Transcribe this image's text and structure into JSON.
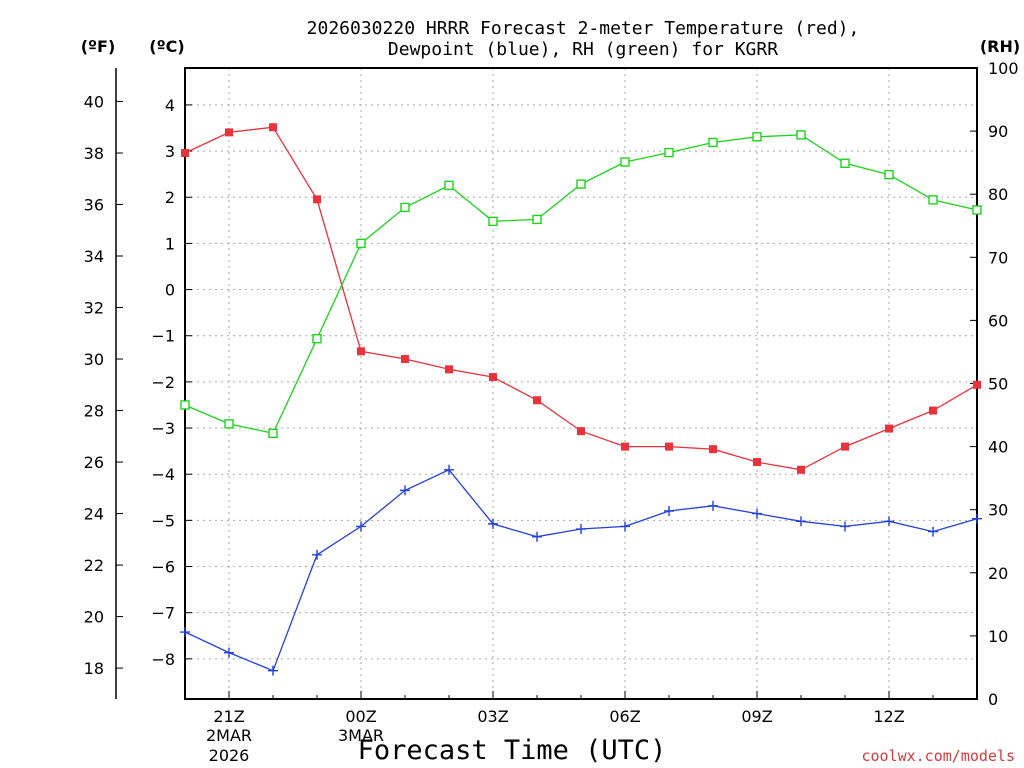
{
  "chart_data": {
    "type": "line",
    "title_line1": "2026030220 HRRR Forecast 2-meter Temperature (red),",
    "title_line2": "Dewpoint (blue), RH (green) for KGRR",
    "xlabel": "Forecast Time (UTC)",
    "credit": "coolwx.com/models",
    "units": {
      "fahrenheit": "(ºF)",
      "celsius": "(ºC)",
      "rh": "(RH)"
    },
    "hours": [
      0,
      1,
      2,
      3,
      4,
      5,
      6,
      7,
      8,
      9,
      10,
      11,
      12,
      13,
      14,
      15,
      16,
      17,
      18
    ],
    "x_ticks": [
      {
        "hour": 1,
        "label": "21Z",
        "sub1": "2MAR",
        "sub2": "2026"
      },
      {
        "hour": 4,
        "label": "00Z",
        "sub1": "3MAR",
        "sub2": ""
      },
      {
        "hour": 7,
        "label": "03Z",
        "sub1": "",
        "sub2": ""
      },
      {
        "hour": 10,
        "label": "06Z",
        "sub1": "",
        "sub2": ""
      },
      {
        "hour": 13,
        "label": "09Z",
        "sub1": "",
        "sub2": ""
      },
      {
        "hour": 16,
        "label": "12Z",
        "sub1": "",
        "sub2": ""
      }
    ],
    "fahrenheit_axis": {
      "ylim": [
        16.8,
        41.3
      ],
      "ticks": [
        "18",
        "20",
        "22",
        "24",
        "26",
        "28",
        "30",
        "32",
        "34",
        "36",
        "38",
        "40"
      ]
    },
    "celsius_axis": {
      "ylim": [
        -8.87,
        4.8
      ],
      "ticks": [
        "−8",
        "−7",
        "−6",
        "−5",
        "−4",
        "−3",
        "−2",
        "−1",
        "0",
        "1",
        "2",
        "3",
        "4"
      ]
    },
    "rh_axis": {
      "ylim": [
        0,
        100
      ],
      "ticks": [
        "0",
        "10",
        "20",
        "30",
        "40",
        "50",
        "60",
        "70",
        "80",
        "90",
        "100"
      ]
    },
    "series": [
      {
        "name": "Temperature",
        "unit": "F",
        "color": "#e8323c",
        "marker": "filled-square",
        "values": [
          38.0,
          38.8,
          39.0,
          36.2,
          30.3,
          30.0,
          29.6,
          29.3,
          28.4,
          27.2,
          26.6,
          26.6,
          26.5,
          26.0,
          25.7,
          26.6,
          27.3,
          28.0,
          29.0
        ]
      },
      {
        "name": "Dewpoint",
        "unit": "F",
        "color": "#2340dc",
        "marker": "plus",
        "values": [
          19.4,
          18.6,
          17.9,
          22.4,
          23.5,
          24.9,
          25.7,
          23.6,
          23.1,
          23.4,
          23.5,
          24.1,
          24.3,
          24.0,
          23.7,
          23.5,
          23.7,
          23.3,
          23.8
        ]
      },
      {
        "name": "RH",
        "unit": "%",
        "color": "#1ed21e",
        "marker": "open-square",
        "values": [
          46.6,
          43.6,
          42.1,
          57.1,
          72.2,
          77.9,
          81.4,
          75.7,
          76.0,
          81.6,
          85.1,
          86.6,
          88.2,
          89.1,
          89.4,
          84.9,
          83.1,
          79.1,
          77.5
        ]
      }
    ]
  }
}
